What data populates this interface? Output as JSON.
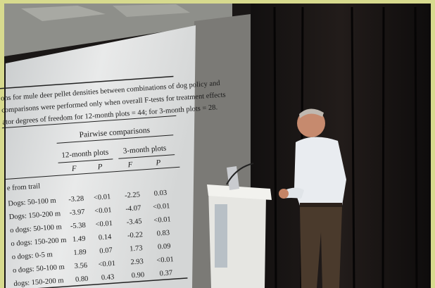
{
  "slide": {
    "caption": [
      "ons for mule deer pellet densities between combinations of dog policy and",
      "comparisons were performed only when overall F-tests for treatment effects",
      "ator degrees of freedom for 12-month plots = 44; for 3-month plots = 28."
    ],
    "table": {
      "group_header": "Pairwise comparisons",
      "periods": [
        "12-month plots",
        "3-month plots"
      ],
      "columns": [
        "F",
        "P",
        "F",
        "P"
      ],
      "section_label": "e from trail",
      "rows": [
        [
          "Dogs: 50-100 m",
          "-3.28",
          "<0.01",
          "-2.25",
          "0.03"
        ],
        [
          "Dogs: 150-200 m",
          "-3.97",
          "<0.01",
          "-4.07",
          "<0.01"
        ],
        [
          "o dogs: 50-100 m",
          "-5.38",
          "<0.01",
          "-3.45",
          "<0.01"
        ],
        [
          "o dogs: 150-200 m",
          "1.49",
          "0.14",
          "-0.22",
          "0.83"
        ],
        [
          "o dogs: 0-5 m",
          "1.89",
          "0.07",
          "1.73",
          "0.09"
        ],
        [
          "o dogs: 50-100 m",
          "3.56",
          "<0.01",
          "2.93",
          "<0.01"
        ],
        [
          "dogs: 150-200 m",
          "0.80",
          "0.43",
          "0.90",
          "0.37"
        ]
      ]
    }
  }
}
